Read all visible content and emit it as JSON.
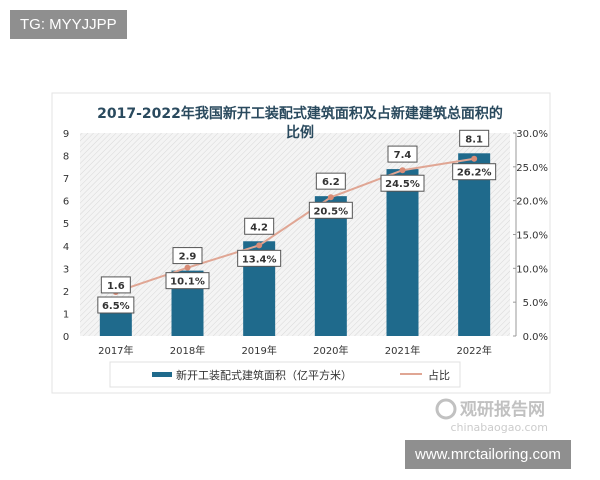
{
  "watermark_top": "TG: MYYJJPP",
  "watermark_bottom": "www.mrctailoring.com",
  "logo": {
    "text": "观研报告网",
    "url_text": "chinabaogao.com"
  },
  "chart_data": {
    "type": "bar+line",
    "title_line1": "2017-2022年我国新开工装配式建筑面积及占新建建筑总面积的",
    "title_line2": "比例",
    "categories": [
      "2017年",
      "2018年",
      "2019年",
      "2020年",
      "2021年",
      "2022年"
    ],
    "series": [
      {
        "name": "新开工装配式建筑面积（亿平方米）",
        "type": "bar",
        "axis": "left",
        "values": [
          1.6,
          2.9,
          4.2,
          6.2,
          7.4,
          8.1
        ],
        "labels": [
          "1.6",
          "2.9",
          "4.2",
          "6.2",
          "7.4",
          "8.1"
        ],
        "color": "#1f6a8c"
      },
      {
        "name": "占比",
        "type": "line",
        "axis": "right",
        "values": [
          6.5,
          10.1,
          13.4,
          20.5,
          24.5,
          26.2
        ],
        "labels": [
          "6.5%",
          "10.1%",
          "13.4%",
          "20.5%",
          "24.5%",
          "26.2%"
        ],
        "color": "#e0a694"
      }
    ],
    "left_axis": {
      "range": [
        0,
        9
      ],
      "ticks": [
        "0",
        "1",
        "2",
        "3",
        "4",
        "5",
        "6",
        "7",
        "8",
        "9"
      ]
    },
    "right_axis": {
      "range": [
        0,
        30
      ],
      "ticks": [
        "0.0%",
        "5.0%",
        "10.0%",
        "15.0%",
        "20.0%",
        "25.0%",
        "30.0%"
      ]
    },
    "legend": "bottom",
    "grid": false
  }
}
